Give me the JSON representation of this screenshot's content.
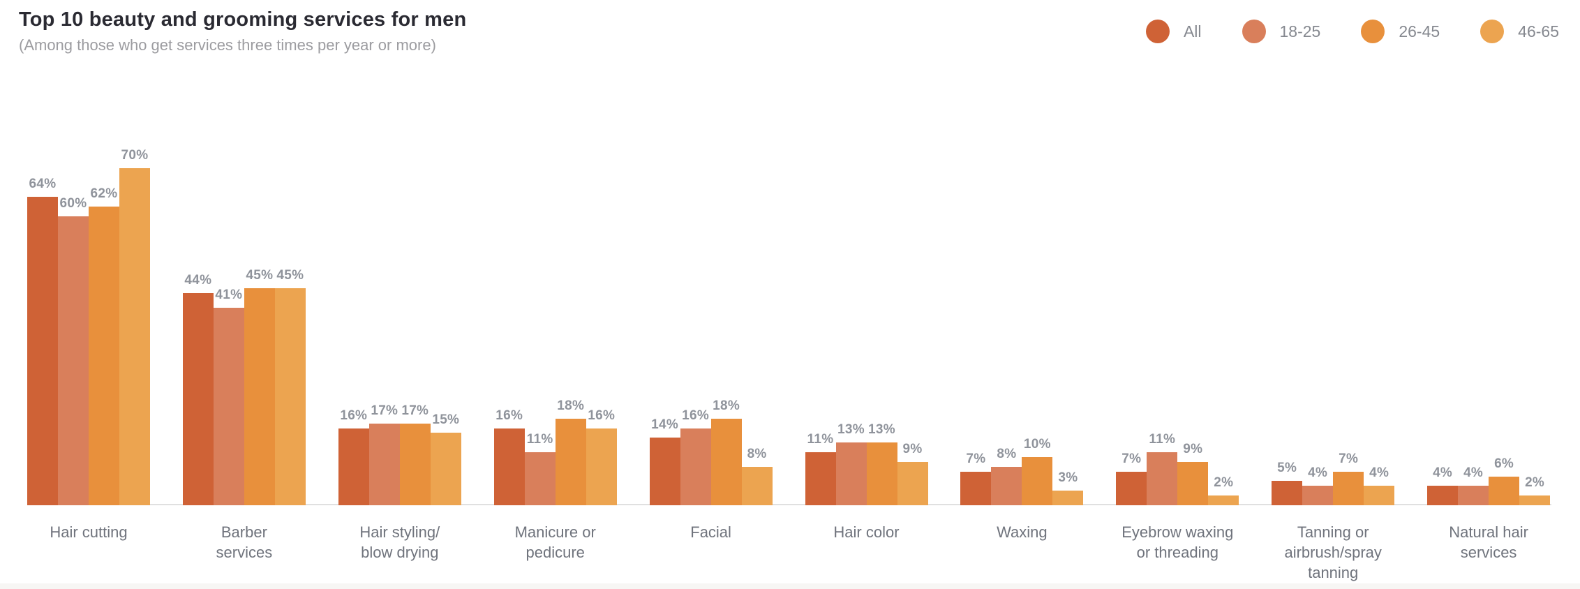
{
  "header": {
    "title": "Top 10 beauty and grooming services for men",
    "subtitle": "(Among those who get services three times per year or more)"
  },
  "legend": [
    {
      "label": "All",
      "color": "#cf6236"
    },
    {
      "label": "18-25",
      "color": "#d97f5b"
    },
    {
      "label": "26-45",
      "color": "#e8903c"
    },
    {
      "label": "46-65",
      "color": "#eca450"
    }
  ],
  "chart_data": {
    "type": "bar",
    "title": "Top 10 beauty and grooming services for men",
    "subtitle": "(Among those who get services three times per year or more)",
    "unit": "%",
    "grid": false,
    "legend_position": "top-right",
    "value_labels": "percent shown above each bar",
    "ylim": [
      0,
      75
    ],
    "categories": [
      "Hair cutting",
      "Barber services",
      "Hair styling/blow drying",
      "Manicure or pedicure",
      "Facial",
      "Hair color",
      "Waxing",
      "Eyebrow waxing or threading",
      "Tanning or airbrush/spray tanning",
      "Natural hair services"
    ],
    "categories_display": [
      "Hair cutting",
      "Barber\nservices",
      "Hair styling/\nblow drying",
      "Manicure or\npedicure",
      "Facial",
      "Hair color",
      "Waxing",
      "Eyebrow waxing\nor threading",
      "Tanning or\nairbrush/spray\ntanning",
      "Natural hair\nservices"
    ],
    "series": [
      {
        "name": "All",
        "color": "#cf6236",
        "values": [
          64,
          44,
          16,
          16,
          14,
          11,
          7,
          7,
          5,
          4
        ]
      },
      {
        "name": "18-25",
        "color": "#d97f5b",
        "values": [
          60,
          41,
          17,
          11,
          16,
          13,
          8,
          11,
          4,
          4
        ]
      },
      {
        "name": "26-45",
        "color": "#e8903c",
        "values": [
          62,
          45,
          17,
          18,
          18,
          13,
          10,
          9,
          7,
          6
        ]
      },
      {
        "name": "46-65",
        "color": "#eca450",
        "values": [
          70,
          45,
          15,
          16,
          8,
          9,
          3,
          2,
          4,
          2
        ]
      }
    ]
  }
}
